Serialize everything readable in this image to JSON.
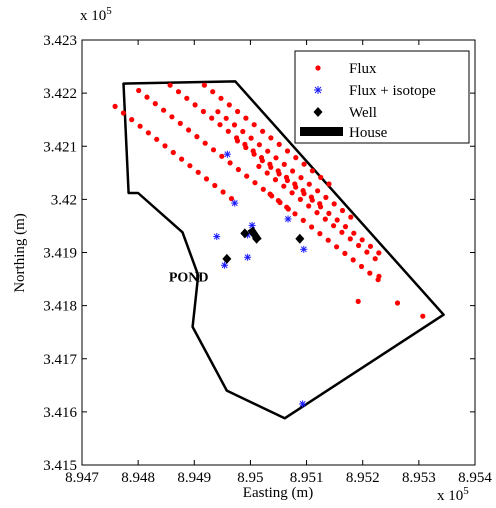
{
  "chart_data": {
    "type": "scatter",
    "title": "",
    "xlabel": "Easting (m)",
    "ylabel": "Northing (m)",
    "x_multiplier_label": "x 10",
    "x_multiplier_exp": "5",
    "y_multiplier_label": "x 10",
    "y_multiplier_exp": "5",
    "xlim": [
      8.947,
      8.954
    ],
    "ylim": [
      3.415,
      3.423
    ],
    "xticks": [
      8.947,
      8.948,
      8.949,
      8.95,
      8.951,
      8.952,
      8.953,
      8.954
    ],
    "xtick_labels": [
      "8.947",
      "8.948",
      "8.949",
      "8.95",
      "8.951",
      "8.952",
      "8.953",
      "8.954"
    ],
    "yticks": [
      3.415,
      3.416,
      3.417,
      3.418,
      3.419,
      3.42,
      3.421,
      3.422,
      3.423
    ],
    "ytick_labels": [
      "3.415",
      "3.416",
      "3.417",
      "3.418",
      "3.419",
      "3.42",
      "3.421",
      "3.422",
      "3.423"
    ],
    "grid": false,
    "legend_position": "top-right",
    "legend": [
      {
        "label": "Flux",
        "marker": "dot",
        "color": "#ff0000"
      },
      {
        "label": "Flux + isotope",
        "marker": "asterisk",
        "color": "#1a1aff"
      },
      {
        "label": "Well",
        "marker": "diamond",
        "color": "#000000"
      },
      {
        "label": "House",
        "marker": "bar",
        "color": "#000000"
      }
    ],
    "annotations": [
      {
        "text": "POND",
        "x": 8.9489,
        "y": 3.41845
      }
    ],
    "boundary": [
      [
        8.94774,
        3.42218
      ],
      [
        8.94973,
        3.42222
      ],
      [
        8.95344,
        3.41783
      ],
      [
        8.95061,
        3.41588
      ],
      [
        8.94958,
        3.4164
      ],
      [
        8.94897,
        3.4176
      ],
      [
        8.94907,
        3.41857
      ],
      [
        8.94879,
        3.41938
      ],
      [
        8.948,
        3.42012
      ],
      [
        8.94783,
        3.42012
      ],
      [
        8.94774,
        3.42218
      ]
    ],
    "flux_lines": [
      {
        "x0": 8.94759,
        "y0": 3.42175,
        "dx": 0.000148,
        "dy": -0.000124,
        "n": 15
      },
      {
        "x0": 8.94801,
        "y0": 3.42205,
        "dx": 0.000148,
        "dy": -0.000124,
        "n": 19
      },
      {
        "x0": 8.94857,
        "y0": 3.42215,
        "dx": 0.000148,
        "dy": -0.000124,
        "n": 19
      },
      {
        "x0": 8.94918,
        "y0": 3.42215,
        "dx": 0.000148,
        "dy": -0.000124,
        "n": 16
      },
      {
        "x0": 8.94942,
        "y0": 3.42165,
        "dx": 0.000148,
        "dy": -0.000124,
        "n": 17
      },
      {
        "x0": 8.94977,
        "y0": 3.4211,
        "dx": 0.000148,
        "dy": -0.000124,
        "n": 18
      },
      {
        "x0": 8.95015,
        "y0": 3.42062,
        "dx": 0.000148,
        "dy": -0.000124,
        "n": 15
      },
      {
        "x0": 8.95035,
        "y0": 3.4201,
        "dx": 0.000148,
        "dy": -0.000124,
        "n": 14
      }
    ],
    "flux_extra": [
      [
        8.95307,
        3.4178
      ],
      [
        8.95192,
        3.41808
      ],
      [
        8.95229,
        3.41855
      ],
      [
        8.95262,
        3.41805
      ]
    ],
    "flux_isotope": [
      [
        8.94959,
        3.42085
      ],
      [
        8.94972,
        3.41993
      ],
      [
        8.9494,
        3.4193
      ],
      [
        8.94954,
        3.41876
      ],
      [
        8.94995,
        3.41933
      ],
      [
        8.95003,
        3.41951
      ],
      [
        8.94995,
        3.41891
      ],
      [
        8.95067,
        3.41963
      ],
      [
        8.95095,
        3.41906
      ],
      [
        8.95093,
        3.41615
      ]
    ],
    "wells": [
      [
        8.94958,
        3.41888
      ],
      [
        8.9499,
        3.41936
      ],
      [
        8.95011,
        3.41926
      ],
      [
        8.95088,
        3.41926
      ]
    ],
    "house": [
      [
        8.95,
        3.41945
      ],
      [
        8.95015,
        3.41922
      ]
    ]
  }
}
